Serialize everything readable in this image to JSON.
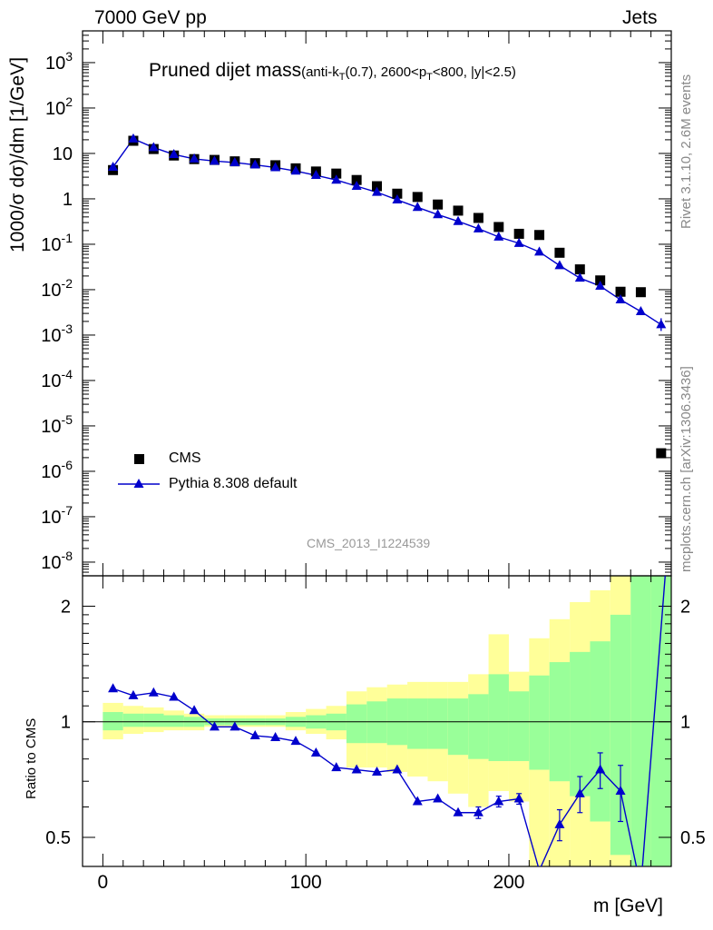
{
  "header": {
    "left": "7000 GeV pp",
    "right": "Jets"
  },
  "side_texts": {
    "rivet": "Rivet 3.1.10,  2.6M events",
    "mcplots": "mcplots.cern.ch [arXiv:1306.3436]"
  },
  "watermark": "CMS_2013_I1224539",
  "title": {
    "main": "Pruned dijet mass",
    "sub_a": "(anti-k",
    "sub_b": "T",
    "sub_c": "(0.7), 2600<p",
    "sub_d": "T",
    "sub_e": "<800, |y|<2.5)"
  },
  "axes": {
    "ylabel_top": "1000/σ dσ)/dm [1/GeV]",
    "ylabel_bottom": "Ratio to CMS",
    "xlabel": "m [GeV]"
  },
  "legend": {
    "cms": "CMS",
    "pythia": "Pythia 8.308 default"
  },
  "colors": {
    "mc_line": "#0000cc",
    "data_marker": "#000000",
    "band_inner": "#99ff99",
    "band_outer": "#ffff99"
  },
  "chart_data": {
    "type": "line",
    "x_ticks": [
      0,
      100,
      200
    ],
    "x_range": [
      -10,
      280
    ],
    "top_panel": {
      "y_scale": "log",
      "y_range": [
        5e-09,
        5000
      ],
      "y_tick_labels": [
        "10^-8",
        "10^-7",
        "10^-6",
        "10^-5",
        "10^-4",
        "10^-3",
        "10^-2",
        "10^-1",
        "1",
        "10",
        "10^2",
        "10^3"
      ],
      "series": [
        {
          "name": "CMS",
          "marker": "square",
          "x": [
            5,
            15,
            25,
            35,
            45,
            55,
            65,
            75,
            85,
            95,
            105,
            115,
            125,
            135,
            145,
            155,
            165,
            175,
            185,
            195,
            205,
            215,
            225,
            235,
            245,
            255,
            265,
            275
          ],
          "y": [
            4.3,
            19,
            12.5,
            9,
            7.5,
            7.2,
            6.7,
            6.1,
            5.5,
            4.7,
            4.0,
            3.6,
            2.6,
            1.9,
            1.3,
            1.1,
            0.75,
            0.55,
            0.38,
            0.24,
            0.17,
            0.16,
            0.065,
            0.028,
            0.016,
            0.009,
            0.0088,
            2.5e-06
          ]
        },
        {
          "name": "Pythia 8.308 default",
          "marker": "triangle",
          "x": [
            5,
            15,
            25,
            35,
            45,
            55,
            65,
            75,
            85,
            95,
            105,
            115,
            125,
            135,
            145,
            155,
            165,
            175,
            185,
            195,
            205,
            215,
            225,
            235,
            245,
            255,
            265,
            275
          ],
          "y": [
            5.0,
            21,
            13.5,
            9.5,
            7.6,
            6.8,
            6.3,
            5.6,
            4.9,
            4.1,
            3.3,
            2.6,
            1.9,
            1.4,
            0.95,
            0.65,
            0.45,
            0.32,
            0.22,
            0.145,
            0.105,
            0.068,
            0.034,
            0.018,
            0.012,
            0.006,
            0.0033,
            0.0017
          ]
        }
      ]
    },
    "bottom_panel": {
      "y_scale": "log",
      "y_range": [
        0.42,
        2.4
      ],
      "y_ticks": [
        0.5,
        1,
        2
      ],
      "reference": 1,
      "ratio": {
        "x": [
          5,
          15,
          25,
          35,
          45,
          55,
          65,
          75,
          85,
          95,
          105,
          115,
          125,
          135,
          145,
          155,
          165,
          175,
          185,
          195,
          205,
          215,
          225,
          235,
          245,
          255,
          265
        ],
        "y": [
          1.22,
          1.17,
          1.19,
          1.16,
          1.07,
          0.97,
          0.97,
          0.92,
          0.91,
          0.89,
          0.83,
          0.76,
          0.75,
          0.74,
          0.75,
          0.62,
          0.63,
          0.58,
          0.58,
          0.62,
          0.63,
          0.41,
          0.54,
          0.65,
          0.75,
          0.66,
          0.37
        ],
        "err": [
          0,
          0,
          0,
          0,
          0,
          0,
          0,
          0,
          0,
          0,
          0,
          0,
          0,
          0,
          0,
          0,
          0,
          0,
          0.02,
          0.02,
          0.02,
          0.03,
          0.05,
          0.07,
          0.08,
          0.11,
          0.0
        ]
      },
      "bands": {
        "x_edges": [
          0,
          10,
          20,
          30,
          40,
          50,
          60,
          70,
          80,
          90,
          100,
          110,
          120,
          130,
          140,
          150,
          160,
          170,
          180,
          190,
          200,
          210,
          220,
          230,
          240,
          250,
          260,
          270,
          280
        ],
        "inner_lo": [
          0.95,
          0.97,
          0.97,
          0.97,
          0.97,
          0.98,
          0.98,
          0.98,
          0.98,
          0.97,
          0.96,
          0.95,
          0.88,
          0.88,
          0.87,
          0.85,
          0.85,
          0.82,
          0.8,
          0.79,
          0.79,
          0.75,
          0.7,
          0.64,
          0.55,
          0.45,
          0.42,
          0.42
        ],
        "inner_hi": [
          1.06,
          1.05,
          1.05,
          1.04,
          1.03,
          1.02,
          1.02,
          1.02,
          1.02,
          1.03,
          1.04,
          1.05,
          1.11,
          1.13,
          1.15,
          1.15,
          1.15,
          1.15,
          1.18,
          1.33,
          1.2,
          1.32,
          1.43,
          1.52,
          1.62,
          1.9,
          2.4,
          2.4
        ],
        "outer_lo": [
          0.9,
          0.93,
          0.94,
          0.95,
          0.95,
          0.97,
          0.97,
          0.97,
          0.97,
          0.95,
          0.93,
          0.9,
          0.76,
          0.76,
          0.74,
          0.72,
          0.7,
          0.65,
          0.6,
          0.66,
          0.62,
          0.4,
          0.4,
          0.4,
          0.4,
          0.4,
          0.4,
          0.4
        ],
        "outer_hi": [
          1.12,
          1.1,
          1.09,
          1.07,
          1.05,
          1.04,
          1.04,
          1.04,
          1.04,
          1.06,
          1.08,
          1.1,
          1.2,
          1.23,
          1.25,
          1.27,
          1.27,
          1.27,
          1.33,
          1.69,
          1.35,
          1.65,
          1.85,
          2.05,
          2.2,
          2.4,
          2.4,
          2.4
        ]
      }
    }
  }
}
